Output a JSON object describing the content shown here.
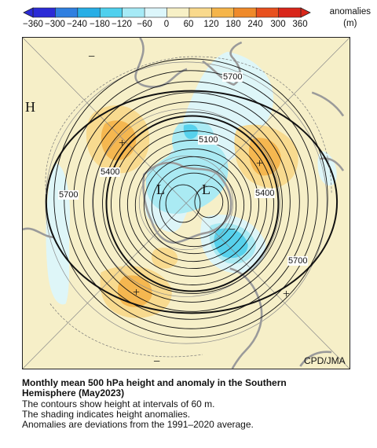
{
  "colorbar": {
    "ticks": [
      "−360",
      "−300",
      "−240",
      "−180",
      "−120",
      "−60",
      "0",
      "60",
      "120",
      "180",
      "240",
      "300",
      "360"
    ],
    "unit_line1": "anomalies",
    "unit_line2": "(m)",
    "colors": [
      "#2b2bd6",
      "#2f7fe0",
      "#27aee6",
      "#4fd0ee",
      "#a6eaf6",
      "#dcf6fb",
      "#f7f0c6",
      "#f9d98c",
      "#f5b54a",
      "#ef8a2a",
      "#e8501e",
      "#d9261a"
    ]
  },
  "map": {
    "background": "#f6efc8",
    "markers": {
      "high_left": "H",
      "low_center_left": "L",
      "low_center_right": "L",
      "minus_top": "−",
      "minus_right": "−",
      "minus_bottom": "−",
      "plus_upper_left": "+",
      "plus_right": "+",
      "plus_lower_left": "+",
      "plus_lower_right": "+"
    },
    "contour_labels": {
      "l5700_top": "5700",
      "l5100": "5100",
      "l5400_left": "5400",
      "l5400_right": "5400",
      "l5700_left": "5700",
      "l5700_right": "5700"
    },
    "credit": "CPD/JMA"
  },
  "caption": {
    "title_line1": "Monthly mean 500 hPa height and anomaly in the Southern",
    "title_line2": "Hemisphere (May2023)",
    "line1": "The contours show height at intervals of 60 m.",
    "line2": "The shading indicates height anomalies.",
    "line3": "Anomalies are deviations from the 1991–2020 average."
  }
}
